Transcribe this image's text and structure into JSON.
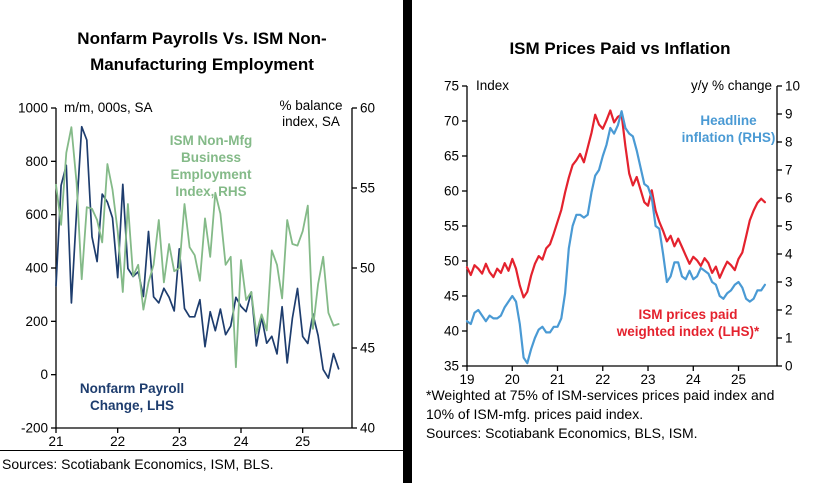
{
  "left_panel": {
    "sources": "Sources: Scotiabank Economics, ISM, BLS."
  },
  "right_panel": {
    "footnote": "*Weighted at 75% of ISM-services prices paid index and 10% of ISM-mfg. prices paid index.",
    "sources": "Sources: Scotiabank Economics, BLS, ISM."
  },
  "chart_data": [
    {
      "type": "line",
      "title": "Nonfarm Payrolls Vs. ISM Non-Manufacturing Employment",
      "left_axis": {
        "label": "m/m, 000s, SA",
        "min": -200,
        "max": 1000,
        "ticks": [
          -200,
          0,
          200,
          400,
          600,
          800,
          1000
        ]
      },
      "right_axis": {
        "label": "% balance index, SA",
        "min": 40,
        "max": 60,
        "ticks": [
          40,
          45,
          50,
          55,
          60
        ]
      },
      "x_axis": {
        "min": 2021,
        "max": 2025.8,
        "ticks": [
          2021,
          2022,
          2023,
          2024,
          2025
        ],
        "tick_labels": [
          "21",
          "22",
          "23",
          "24",
          "25"
        ]
      },
      "series": [
        {
          "name": "Nonfarm Payroll Change, LHS",
          "axis": "left",
          "color": "#1e3d6e",
          "stroke_width": 1.7,
          "x_start": 2021.0,
          "x_step": 0.0833333,
          "values": [
            333,
            710,
            785,
            269,
            614,
            930,
            880,
            517,
            424,
            677,
            647,
            588,
            364,
            714,
            398,
            368,
            386,
            293,
            537,
            292,
            269,
            324,
            290,
            239,
            472,
            248,
            217,
            217,
            281,
            105,
            236,
            165,
            246,
            150,
            182,
            290,
            256,
            236,
            310,
            108,
            216,
            118,
            144,
            78,
            255,
            44,
            212,
            323,
            143,
            117,
            228,
            147,
            19,
            -13,
            79,
            22
          ]
        },
        {
          "name": "ISM Non-Mfg Business Employment Index, RHS",
          "axis": "right",
          "color": "#84ba88",
          "stroke_width": 1.8,
          "x_start": 2021.0,
          "x_step": 0.0833333,
          "values": [
            55.2,
            52.7,
            57.2,
            58.8,
            55.3,
            49.3,
            53.8,
            53.7,
            53.0,
            51.6,
            56.5,
            54.9,
            52.3,
            48.5,
            54.0,
            49.5,
            50.2,
            47.4,
            49.1,
            50.2,
            53.0,
            49.1,
            51.5,
            49.8,
            50.0,
            54.0,
            51.3,
            50.8,
            49.2,
            53.1,
            50.7,
            54.7,
            53.4,
            50.2,
            50.7,
            43.8,
            50.5,
            48.0,
            48.5,
            45.9,
            47.1,
            46.1,
            51.1,
            50.2,
            48.1,
            53.0,
            51.5,
            51.4,
            52.3,
            53.9,
            46.2,
            49.0,
            50.7,
            47.2,
            46.4,
            46.5
          ]
        }
      ]
    },
    {
      "type": "line",
      "title": "ISM Prices Paid vs Inflation",
      "left_axis": {
        "label": "Index",
        "min": 35,
        "max": 75,
        "ticks": [
          35,
          40,
          45,
          50,
          55,
          60,
          65,
          70,
          75
        ]
      },
      "right_axis": {
        "label": "y/y % change",
        "min": 0,
        "max": 10,
        "ticks": [
          0,
          1,
          2,
          3,
          4,
          5,
          6,
          7,
          8,
          9,
          10
        ]
      },
      "x_axis": {
        "min": 2019,
        "max": 2025.85,
        "ticks": [
          2019,
          2020,
          2021,
          2022,
          2023,
          2024,
          2025
        ],
        "tick_labels": [
          "19",
          "20",
          "21",
          "22",
          "23",
          "24",
          "25"
        ]
      },
      "series": [
        {
          "name": "ISM prices paid weighted index (LHS)*",
          "axis": "left",
          "color": "#e4222e",
          "stroke_width": 2.2,
          "x_start": 2019.0,
          "x_step": 0.0833333,
          "values": [
            49.1,
            48.0,
            49.4,
            48.9,
            48.2,
            49.6,
            48.4,
            47.7,
            48.9,
            48.3,
            49.7,
            48.6,
            50.3,
            48.9,
            46.5,
            44.8,
            45.6,
            47.9,
            49.6,
            50.7,
            50.2,
            51.8,
            52.4,
            53.9,
            55.6,
            57.3,
            59.8,
            61.9,
            63.7,
            64.4,
            65.3,
            64.1,
            66.2,
            68.3,
            70.9,
            69.5,
            68.9,
            70.1,
            71.5,
            69.8,
            70.6,
            70.9,
            66.4,
            62.5,
            60.8,
            62.0,
            60.2,
            58.4,
            57.9,
            60.1,
            57.2,
            55.6,
            54.3,
            52.8,
            53.6,
            52.1,
            53.2,
            52.0,
            50.8,
            49.6,
            50.6,
            50.1,
            49.3,
            50.4,
            49.7,
            48.3,
            49.2,
            47.6,
            48.8,
            49.9,
            49.4,
            48.7,
            50.3,
            51.2,
            53.5,
            55.8,
            57.2,
            58.3,
            58.9,
            58.4
          ]
        },
        {
          "name": "Headline inflation (RHS)",
          "axis": "right",
          "color": "#4a9ad4",
          "stroke_width": 2.2,
          "x_start": 2019.0,
          "x_step": 0.0833333,
          "values": [
            1.6,
            1.5,
            1.9,
            2.0,
            1.8,
            1.6,
            1.8,
            1.7,
            1.7,
            1.8,
            2.1,
            2.3,
            2.5,
            2.3,
            1.5,
            0.3,
            0.1,
            0.6,
            1.0,
            1.3,
            1.4,
            1.2,
            1.2,
            1.4,
            1.4,
            1.7,
            2.6,
            4.2,
            5.0,
            5.4,
            5.4,
            5.3,
            5.4,
            6.2,
            6.8,
            7.0,
            7.5,
            7.9,
            8.5,
            8.3,
            8.6,
            9.1,
            8.5,
            8.3,
            8.2,
            7.7,
            7.1,
            6.5,
            6.4,
            6.0,
            5.0,
            4.9,
            4.0,
            3.0,
            3.2,
            3.7,
            3.7,
            3.2,
            3.1,
            3.4,
            3.1,
            3.2,
            3.5,
            3.4,
            3.3,
            3.0,
            2.9,
            2.5,
            2.4,
            2.6,
            2.7,
            2.9,
            3.0,
            2.8,
            2.4,
            2.3,
            2.4,
            2.7,
            2.7,
            2.9
          ]
        }
      ]
    }
  ]
}
